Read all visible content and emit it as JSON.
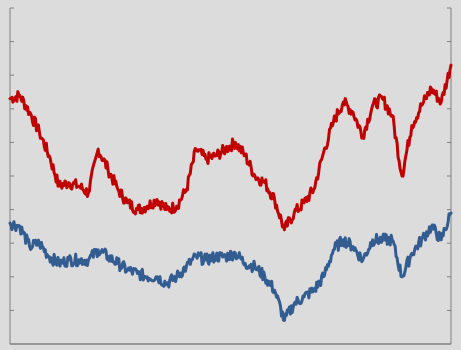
{
  "chart_data": {
    "type": "line",
    "title": "",
    "xlabel": "",
    "ylabel": "",
    "grid": false,
    "legend": "none",
    "background_color": "#dcdcdc",
    "axis_color": "#7f7f7f",
    "x": [
      0,
      10,
      20,
      30,
      40,
      50,
      60,
      70,
      80,
      90,
      100,
      110,
      120,
      130,
      140,
      150,
      160,
      170,
      180,
      190,
      200,
      210,
      220,
      230,
      240,
      250,
      260,
      270,
      280,
      290,
      300,
      310,
      320,
      330,
      340,
      350,
      360,
      370,
      380,
      390,
      400,
      410,
      420,
      430,
      440,
      450
    ],
    "xlim": [
      0,
      450
    ],
    "ylim": [
      0,
      10
    ],
    "y_tick_count": 10,
    "series": [
      {
        "color": "#c00000",
        "values": [
          7.3,
          7.4,
          6.9,
          6.3,
          5.6,
          4.7,
          4.8,
          4.7,
          4.5,
          5.8,
          5.2,
          4.6,
          4.2,
          4.0,
          4.1,
          4.3,
          4.0,
          4.1,
          4.6,
          5.8,
          5.5,
          5.6,
          5.8,
          6.0,
          5.6,
          5.0,
          4.8,
          4.3,
          3.4,
          3.9,
          4.2,
          4.6,
          5.7,
          6.6,
          7.2,
          6.9,
          6.2,
          7.1,
          7.3,
          6.8,
          5.0,
          6.5,
          7.1,
          7.6,
          7.2,
          8.3
        ]
      },
      {
        "color": "#335c91",
        "values": [
          3.6,
          3.5,
          2.9,
          3.0,
          2.6,
          2.4,
          2.5,
          2.5,
          2.5,
          2.8,
          2.6,
          2.4,
          2.2,
          2.1,
          2.0,
          2.0,
          1.8,
          2.0,
          2.3,
          2.6,
          2.5,
          2.6,
          2.6,
          2.7,
          2.4,
          2.3,
          2.0,
          1.6,
          0.7,
          1.2,
          1.4,
          1.6,
          2.0,
          2.8,
          3.1,
          2.9,
          2.5,
          3.1,
          3.1,
          3.1,
          2.0,
          2.7,
          3.1,
          3.5,
          3.1,
          3.9
        ]
      }
    ]
  }
}
